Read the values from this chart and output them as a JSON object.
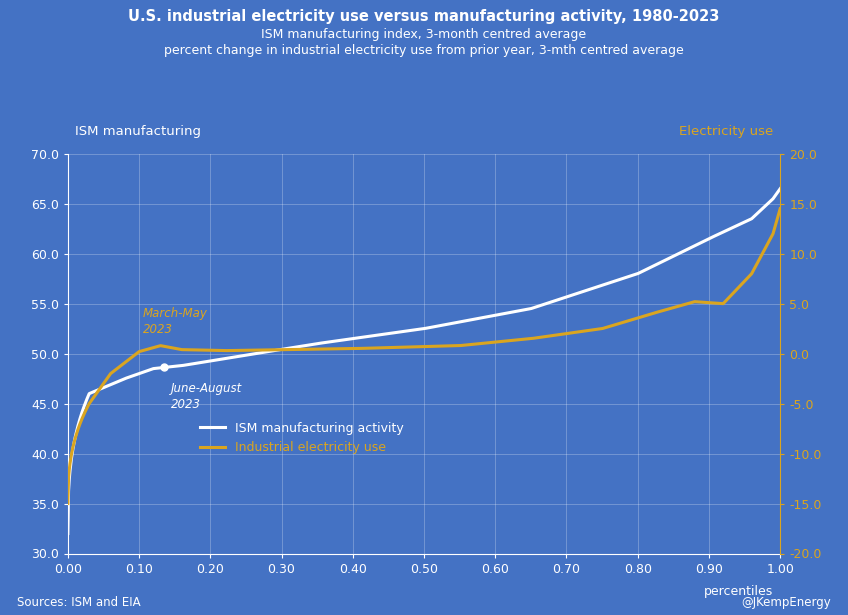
{
  "title_line1": "U.S. industrial electricity use versus manufacturing activity, 1980-2023",
  "title_line2": "ISM manufacturing index, 3-month centred average",
  "title_line3": "percent change in industrial electricity use from prior year, 3-mth centred average",
  "bg_color": "#4472C4",
  "ism_color": "#FFFFFF",
  "elec_color": "#DAA520",
  "left_label": "ISM manufacturing",
  "right_label": "Electricity use",
  "left_ylim": [
    30.0,
    70.0
  ],
  "right_ylim": [
    -20.0,
    20.0
  ],
  "left_yticks": [
    30.0,
    35.0,
    40.0,
    45.0,
    50.0,
    55.0,
    60.0,
    65.0,
    70.0
  ],
  "right_yticks": [
    -20.0,
    -15.0,
    -10.0,
    -5.0,
    0.0,
    5.0,
    10.0,
    15.0,
    20.0
  ],
  "xlabel": "percentiles",
  "xticks": [
    0.0,
    0.1,
    0.2,
    0.3,
    0.4,
    0.5,
    0.6,
    0.7,
    0.8,
    0.9,
    1.0
  ],
  "source_text": "Sources: ISM and EIA",
  "credit_text": "@JKempEnergy",
  "legend_entries": [
    "ISM manufacturing activity",
    "Industrial electricity use"
  ],
  "annot1_text": "March-May\n2023",
  "annot2_text": "June-August\n2023"
}
